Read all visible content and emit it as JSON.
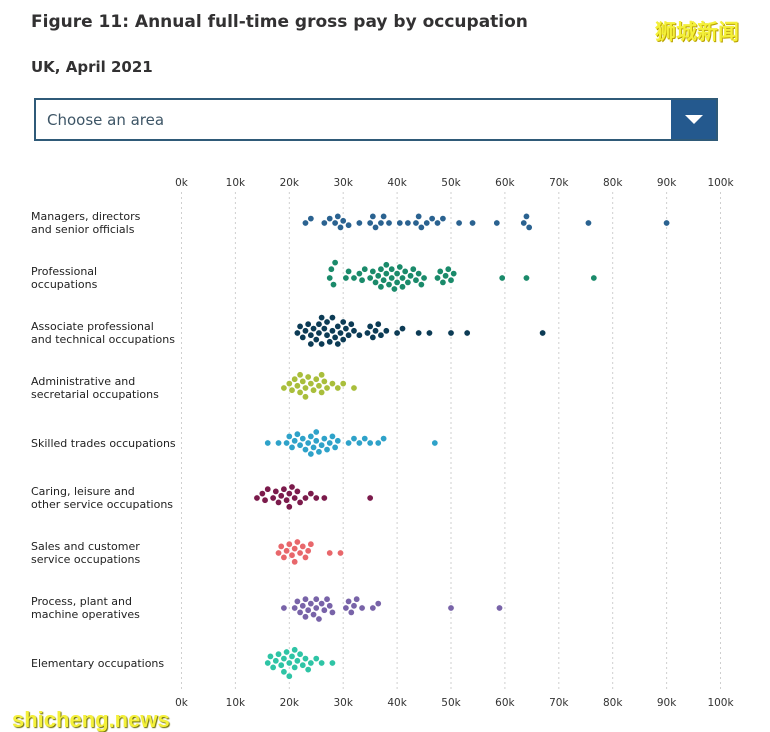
{
  "title": "Figure 11: Annual full-time gross pay by occupation",
  "subtitle": "UK, April 2021",
  "watermark_top": "狮城新闻",
  "watermark_bottom": "shicheng.news",
  "area_select": {
    "placeholder": "Choose an area"
  },
  "chart_data": {
    "type": "scatter",
    "subtype": "beeswarm",
    "title": "Figure 11: Annual full-time gross pay by occupation",
    "xlabel": "",
    "ylabel": "",
    "xlim": [
      0,
      100
    ],
    "x_unit": "k (£ thousands)",
    "tick_labels": [
      "0k",
      "10k",
      "20k",
      "30k",
      "40k",
      "50k",
      "60k",
      "70k",
      "80k",
      "90k",
      "100k"
    ],
    "grid": true,
    "series": [
      {
        "name": "Managers, directors\nand senior officials",
        "color": "#2a6290",
        "values": [
          23,
          24,
          26.5,
          27.5,
          28.5,
          29,
          29.5,
          30,
          31,
          33,
          35,
          35.5,
          36,
          37,
          37.5,
          38.5,
          40.5,
          42,
          43.5,
          44,
          44.5,
          45.5,
          46.5,
          47.5,
          48.5,
          51.5,
          54,
          58.5,
          63.5,
          64,
          64.5,
          75.5,
          90
        ]
      },
      {
        "name": "Professional\noccupations",
        "color": "#1a8a6a",
        "values": [
          27.5,
          27.8,
          28.2,
          28.5,
          30.5,
          31,
          32,
          33,
          33.5,
          34,
          35,
          35.5,
          36,
          36.5,
          37,
          37,
          37.5,
          38,
          38,
          38.5,
          39,
          39,
          39.5,
          40,
          40,
          40.5,
          41,
          41,
          41.5,
          42,
          42.5,
          43,
          43.5,
          44,
          44.5,
          45,
          47.5,
          48,
          48.5,
          49,
          49.5,
          50,
          50.5,
          59.5,
          64,
          76.5
        ]
      },
      {
        "name": "Associate professional\nand technical occupations",
        "color": "#0c3b55",
        "values": [
          21.5,
          22,
          22.5,
          23,
          23.5,
          24,
          24,
          24.5,
          25,
          25.5,
          25.5,
          26,
          26,
          26.5,
          27,
          27,
          27.5,
          28,
          28,
          28.5,
          29,
          29,
          29.5,
          30,
          30,
          30.5,
          31,
          31.5,
          32,
          33,
          34.5,
          35,
          35.5,
          36,
          36.5,
          37,
          38,
          40,
          41,
          44,
          46,
          50,
          53,
          67
        ]
      },
      {
        "name": "Administrative and\nsecretarial occupations",
        "color": "#a9be3b",
        "values": [
          19,
          20,
          20.5,
          21,
          21.5,
          22,
          22,
          22.5,
          23,
          23,
          23.5,
          24,
          24.5,
          25,
          25.5,
          26,
          26,
          26.5,
          27,
          28,
          29,
          30,
          32
        ]
      },
      {
        "name": "Skilled trades occupations",
        "color": "#2ea2c9",
        "values": [
          16,
          18,
          19.5,
          20,
          20.5,
          21,
          21.5,
          22,
          22.5,
          23,
          23.5,
          24,
          24,
          24.5,
          25,
          25,
          25.5,
          26,
          26.5,
          27,
          27.5,
          28,
          28.5,
          29,
          31,
          32,
          33,
          34,
          35,
          36.5,
          37.5,
          47
        ]
      },
      {
        "name": "Caring, leisure and\nother service occupations",
        "color": "#7b1a4b",
        "values": [
          14,
          15,
          15.5,
          16,
          17,
          17.5,
          18,
          18.5,
          19,
          19.5,
          20,
          20,
          20.5,
          21,
          21.5,
          22,
          23,
          24,
          25,
          26.5,
          35
        ]
      },
      {
        "name": "Sales and customer\nservice occupations",
        "color": "#e8676b",
        "values": [
          18,
          18.5,
          19,
          19.5,
          20,
          20.5,
          21,
          21,
          21.5,
          22,
          22.5,
          23,
          23.5,
          24,
          27.5,
          29.5
        ]
      },
      {
        "name": "Process, plant and\nmachine operatives",
        "color": "#7863a8",
        "values": [
          19,
          21,
          21.5,
          22,
          22.5,
          23,
          23,
          23.5,
          24,
          24.5,
          25,
          25,
          25.5,
          26,
          26.5,
          27,
          27.5,
          28,
          30.5,
          31,
          31.5,
          32,
          32.5,
          33.5,
          35.5,
          36.5,
          50,
          59
        ]
      },
      {
        "name": "Elementary occupations",
        "color": "#2ec4a5",
        "values": [
          16,
          16.5,
          17,
          17.5,
          18,
          18.5,
          19,
          19,
          19.5,
          20,
          20,
          20.5,
          21,
          21,
          21.5,
          22,
          22.5,
          23,
          23.5,
          24,
          25,
          26,
          28
        ]
      }
    ]
  }
}
